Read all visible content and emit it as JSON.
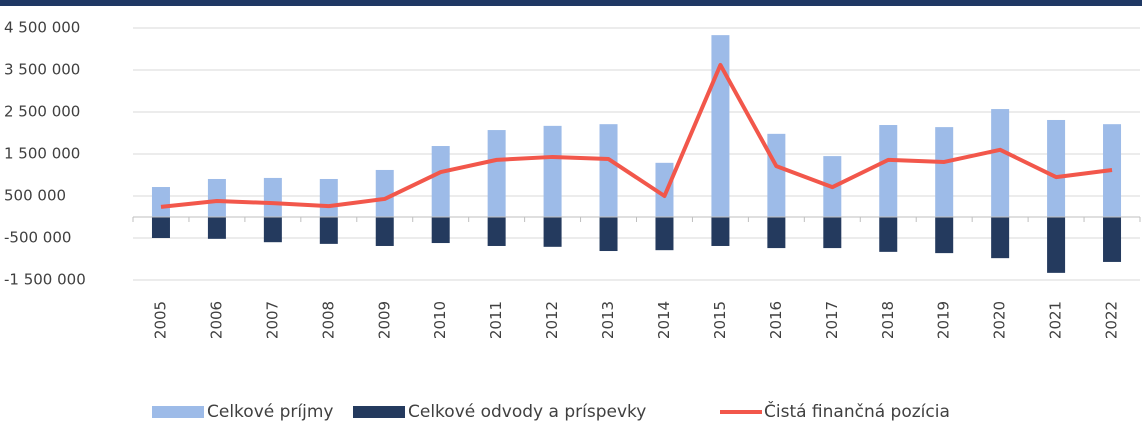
{
  "chart_data": {
    "type": "bar_line",
    "categories": [
      "2005",
      "2006",
      "2007",
      "2008",
      "2009",
      "2010",
      "2011",
      "2012",
      "2013",
      "2014",
      "2015",
      "2016",
      "2017",
      "2018",
      "2019",
      "2020",
      "2021",
      "2022"
    ],
    "series": [
      {
        "name": "Celkové príjmy",
        "color": "#9dbbe8",
        "type": "bar",
        "values": [
          714000,
          905000,
          930000,
          905000,
          1120000,
          1690000,
          2070000,
          2170000,
          2210000,
          1290000,
          4330000,
          1980000,
          1450000,
          2190000,
          2140000,
          2570000,
          2310000,
          2210000
        ]
      },
      {
        "name": "Celkové odvody a príspevky",
        "color": "#243a5e",
        "type": "bar",
        "values": [
          -500000,
          -520000,
          -600000,
          -640000,
          -690000,
          -620000,
          -690000,
          -710000,
          -810000,
          -790000,
          -690000,
          -740000,
          -740000,
          -830000,
          -860000,
          -980000,
          -1330000,
          -1070000
        ]
      },
      {
        "name": "Čistá finančná pozícia",
        "color": "#f2574b",
        "type": "line",
        "values": [
          240000,
          380000,
          330000,
          260000,
          430000,
          1070000,
          1360000,
          1430000,
          1380000,
          500000,
          3620000,
          1210000,
          710000,
          1360000,
          1310000,
          1600000,
          950000,
          1120000
        ]
      }
    ],
    "ylim": [
      -1500000,
      4500000
    ],
    "yticks": [
      {
        "value": -1500000,
        "label": "-1 500 000"
      },
      {
        "value": -500000,
        "label": "-500 000"
      },
      {
        "value": 500000,
        "label": "500 000"
      },
      {
        "value": 1500000,
        "label": "1 500 000"
      },
      {
        "value": 2500000,
        "label": "2 500 000"
      },
      {
        "value": 3500000,
        "label": "3 500 000"
      },
      {
        "value": 4500000,
        "label": "4 500 000"
      }
    ],
    "grid": true,
    "legend": "bottom"
  }
}
